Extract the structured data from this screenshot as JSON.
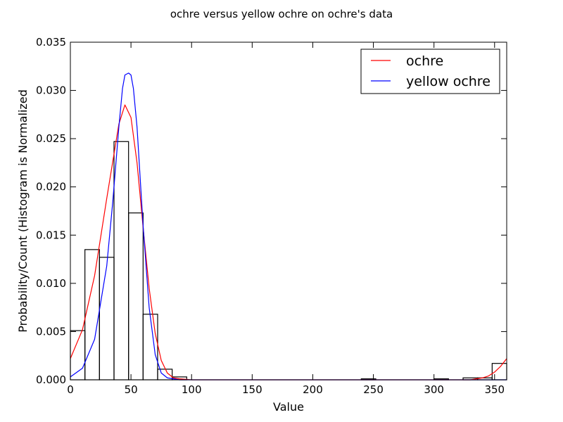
{
  "chart_data": {
    "type": "histogram",
    "title": "ochre versus yellow ochre on ochre's data",
    "xlabel": "Value",
    "ylabel": "Probability/Count (Histogram is Normalized",
    "xlim": [
      0,
      360
    ],
    "ylim": [
      0,
      0.035
    ],
    "xticks": [
      "0",
      "50",
      "100",
      "150",
      "200",
      "250",
      "300",
      "350"
    ],
    "xtick_values": [
      0,
      50,
      100,
      150,
      200,
      250,
      300,
      350
    ],
    "yticks": [
      "0.000",
      "0.005",
      "0.010",
      "0.015",
      "0.020",
      "0.025",
      "0.030",
      "0.035"
    ],
    "ytick_values": [
      0,
      0.005,
      0.01,
      0.015,
      0.02,
      0.025,
      0.03,
      0.035
    ],
    "grid": false,
    "legend_position": "top-right",
    "histogram": {
      "bin_edges": [
        0,
        12,
        24,
        36,
        48,
        60,
        72,
        84,
        96,
        108,
        120,
        132,
        144,
        156,
        168,
        180,
        192,
        204,
        216,
        228,
        240,
        252,
        264,
        276,
        288,
        300,
        312,
        324,
        336,
        348,
        360
      ],
      "values": [
        0.0051,
        0.0135,
        0.0127,
        0.0247,
        0.0173,
        0.0068,
        0.0011,
        0.0003,
        0,
        0,
        0,
        0,
        0,
        0,
        0,
        0,
        0,
        0,
        0,
        0,
        0.0001,
        0,
        0,
        0,
        0,
        0.0001,
        0,
        0.0002,
        0.0002,
        0.0017
      ],
      "color": "#000000"
    },
    "series": [
      {
        "name": "ochre",
        "color": "#ff0000",
        "points": [
          [
            0,
            0.0022
          ],
          [
            10,
            0.0052
          ],
          [
            20,
            0.0108
          ],
          [
            30,
            0.0188
          ],
          [
            40,
            0.0265
          ],
          [
            45,
            0.0285
          ],
          [
            50,
            0.0272
          ],
          [
            55,
            0.0225
          ],
          [
            60,
            0.0158
          ],
          [
            65,
            0.0095
          ],
          [
            70,
            0.0048
          ],
          [
            75,
            0.002
          ],
          [
            80,
            0.0007
          ],
          [
            85,
            0.0002
          ],
          [
            90,
            0.0001
          ],
          [
            100,
            0
          ],
          [
            330,
            0
          ],
          [
            340,
            0.0002
          ],
          [
            345,
            0.0004
          ],
          [
            350,
            0.0008
          ],
          [
            355,
            0.0014
          ],
          [
            360,
            0.0022
          ]
        ]
      },
      {
        "name": "yellow ochre",
        "color": "#0000ff",
        "points": [
          [
            0,
            0.0003
          ],
          [
            10,
            0.0012
          ],
          [
            20,
            0.0042
          ],
          [
            30,
            0.0118
          ],
          [
            35,
            0.0185
          ],
          [
            40,
            0.0262
          ],
          [
            43,
            0.0302
          ],
          [
            45,
            0.0316
          ],
          [
            48,
            0.0318
          ],
          [
            50,
            0.0316
          ],
          [
            52,
            0.0302
          ],
          [
            55,
            0.0262
          ],
          [
            60,
            0.016
          ],
          [
            65,
            0.0075
          ],
          [
            70,
            0.0026
          ],
          [
            75,
            0.0007
          ],
          [
            80,
            0.0002
          ],
          [
            90,
            0
          ],
          [
            360,
            0
          ]
        ]
      }
    ]
  }
}
